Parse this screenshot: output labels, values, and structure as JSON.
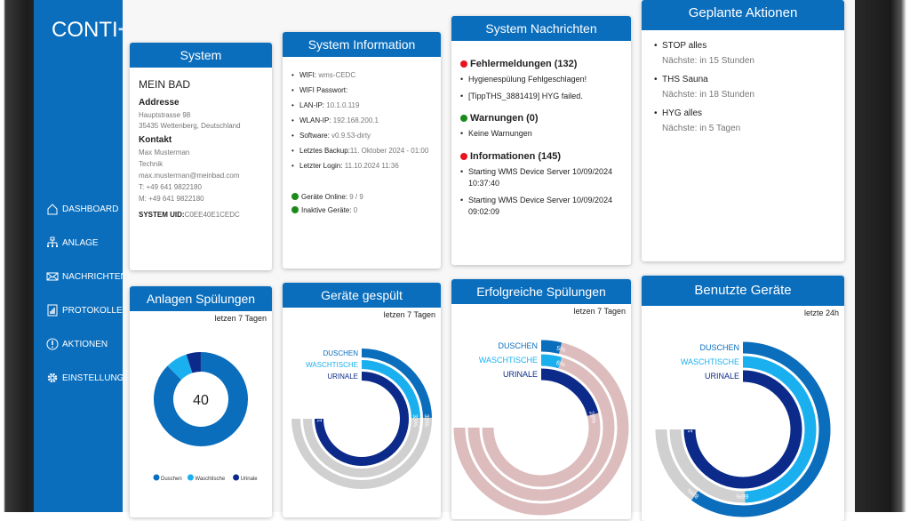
{
  "brand": "CONTI",
  "nav": [
    {
      "label": "DASHBOARD",
      "icon": "home-icon"
    },
    {
      "label": "ANLAGE",
      "icon": "network-icon"
    },
    {
      "label": "NACHRICHTEN",
      "icon": "mail-icon"
    },
    {
      "label": "PROTOKOLLE",
      "icon": "chart-icon"
    },
    {
      "label": "AKTIONEN",
      "icon": "alert-icon"
    },
    {
      "label": "EINSTELLUNGEN",
      "icon": "gear-icon"
    }
  ],
  "system": {
    "title": "System",
    "name": "MEIN BAD",
    "address_label": "Addresse",
    "address1": "Hauptstrasse 98",
    "address2": "35435 Wettenberg, Deutschland",
    "contact_label": "Kontakt",
    "contact_name": "Max Musterman",
    "contact_dept": "Technik",
    "email": "max.musterman@meinbad.com",
    "phone": "T: +49 641 9822180",
    "mobile": "M: +49 641 9822180",
    "uid_label": "SYSTEM UID:",
    "uid": "C0EE40E1CEDC"
  },
  "info": {
    "title": "System Information",
    "items": [
      {
        "k": "WIFI:",
        "v": " wms-CEDC"
      },
      {
        "k": "WIFI Passwort:",
        "v": ""
      },
      {
        "k": "LAN-IP:",
        "v": " 10.1.0.119"
      },
      {
        "k": "WLAN-IP:",
        "v": " 192.168.200.1"
      },
      {
        "k": "Software:",
        "v": " v0.9.53-dirty"
      },
      {
        "k": "Letztes Backup:",
        "v": "11. Oktober 2024 - 01:00"
      },
      {
        "k": "Letzter Login:",
        "v": " 11.10.2024 11:36"
      }
    ],
    "online_label": "Geräte Online:",
    "online": " 9 / 9",
    "inactive_label": "Inaktive Geräte:",
    "inactive": " 0",
    "status_color": "#1a8a1a"
  },
  "messages": {
    "title": "System Nachrichten",
    "errors": {
      "label": "Fehlermeldungen (132)",
      "color": "#e8141e",
      "items": [
        "Hygienespülung Fehlgeschlagen!",
        "[TippTHS_3881419] HYG failed."
      ]
    },
    "warnings": {
      "label": "Warnungen (0)",
      "color": "#1a8a1a",
      "items": [
        "Keine Warnungen"
      ]
    },
    "infos": {
      "label": "Informationen (145)",
      "color": "#e8141e",
      "items": [
        "Starting WMS Device Server 10/09/2024 10:37:40",
        "Starting WMS Device Server 10/09/2024 09:02:09"
      ]
    }
  },
  "actions": {
    "title": "Geplante Aktionen",
    "items": [
      {
        "name": "STOP alles",
        "next": "Nächste: in 15 Stunden"
      },
      {
        "name": "THS Sauna",
        "next": "Nächste: in 18 Stunden"
      },
      {
        "name": "HYG alles",
        "next": "Nächste: in 5 Tagen"
      }
    ]
  },
  "chart_data": [
    {
      "type": "pie",
      "title": "Anlagen Spülungen",
      "period": "letzen 7 Tagen",
      "center_label": "40",
      "categories": [
        "Duschen",
        "Waschtische",
        "Urinale"
      ],
      "values": [
        35,
        3,
        2
      ],
      "colors": [
        "#0a6ebd",
        "#1ab0ef",
        "#0b2a8a"
      ]
    },
    {
      "type": "radial-bar",
      "title": "Geräte gespült",
      "period": "letzen 7 Tagen",
      "categories": [
        "DUSCHEN",
        "WASCHTISCHE",
        "URINALE"
      ],
      "values": [
        33,
        33,
        100
      ],
      "value_labels": [
        "33%",
        "33%",
        "100%"
      ],
      "colors": [
        "#0a6ebd",
        "#1ab0ef",
        "#0b2a8a"
      ],
      "track": "#d0d0d0",
      "max": 100
    },
    {
      "type": "radial-bar",
      "title": "Erfolgreiche Spülungen",
      "period": "letzen 7 Tagen",
      "categories": [
        "DUSCHEN",
        "WASCHTISCHE",
        "URINALE"
      ],
      "values": [
        5,
        6,
        28
      ],
      "value_labels": [
        "5%",
        "6%",
        "28%"
      ],
      "colors": [
        "#0a6ebd",
        "#1ab0ef",
        "#0b2a8a"
      ],
      "track": "#dcbcbc",
      "max": 100
    },
    {
      "type": "radial-bar",
      "title": "Benutzte Geräte",
      "period": "letzte 24h",
      "categories": [
        "DUSCHEN",
        "WASCHTISCHE",
        "URINALE"
      ],
      "values": [
        80,
        66,
        100
      ],
      "value_labels": [
        "80%",
        "66%",
        "100%"
      ],
      "colors": [
        "#0a6ebd",
        "#1ab0ef",
        "#0b2a8a"
      ],
      "track": "#d0d0d0",
      "max": 100
    }
  ]
}
